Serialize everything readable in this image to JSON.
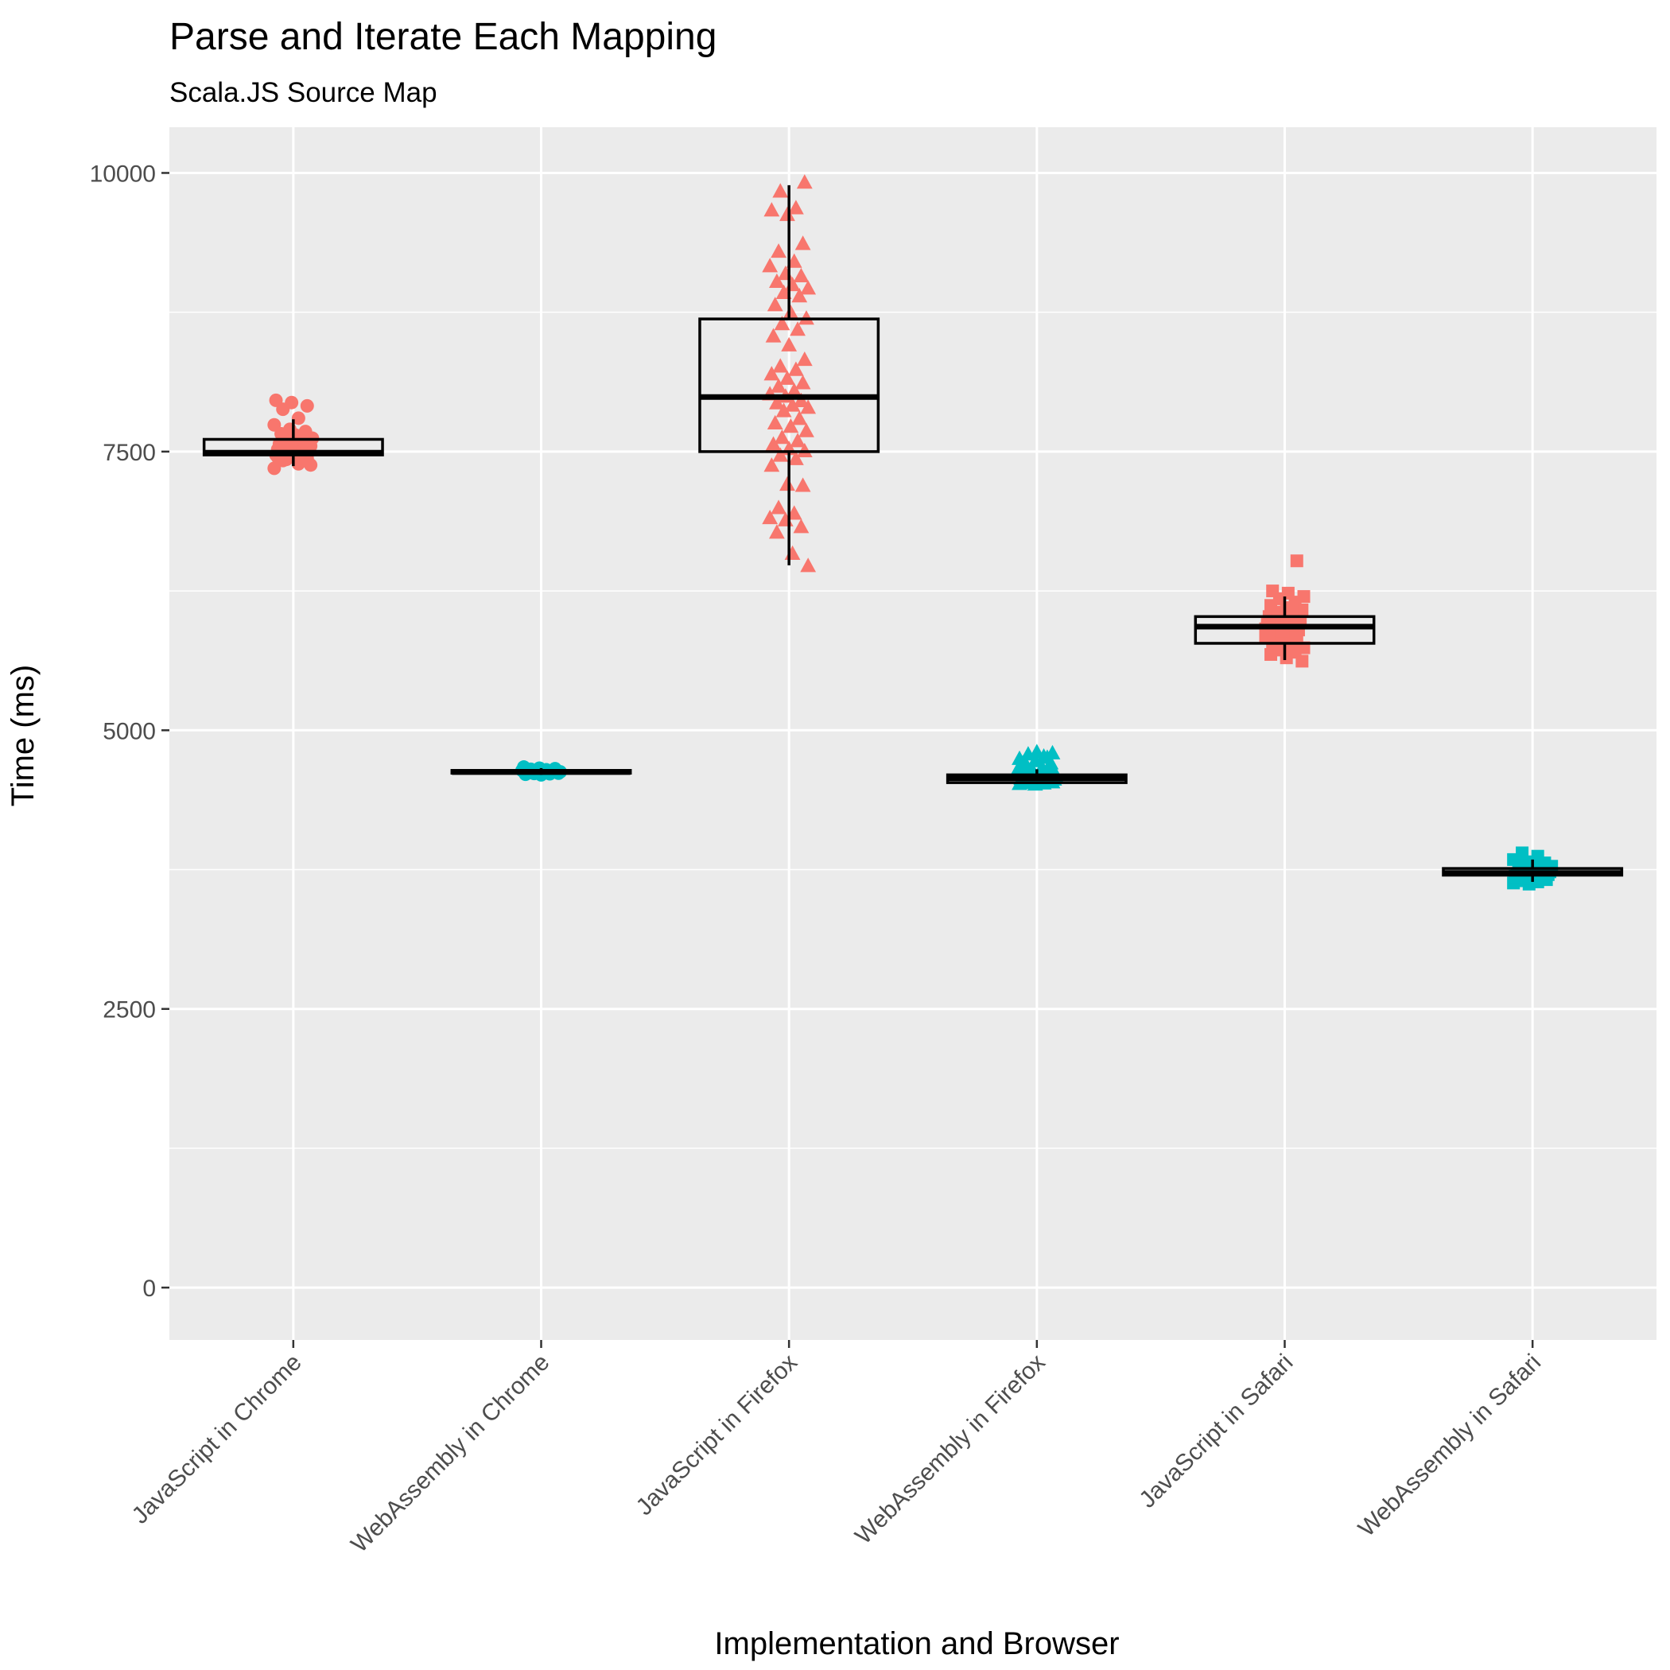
{
  "chart_data": {
    "type": "boxplot",
    "title": "Parse and Iterate Each Mapping",
    "subtitle": "Scala.JS Source Map",
    "xlabel": "Implementation and Browser",
    "ylabel": "Time (ms)",
    "ylim": [
      -470,
      10410
    ],
    "yticks": [
      0,
      2500,
      5000,
      7500,
      10000
    ],
    "grid": true,
    "legend": "none",
    "colors": {
      "JavaScript": "#F8766D",
      "WebAssembly": "#00BFC4",
      "panel": "#EBEBEB",
      "grid": "#FFFFFF"
    },
    "categories": [
      "JavaScript in Chrome",
      "WebAssembly in Chrome",
      "JavaScript in Firefox",
      "WebAssembly in Firefox",
      "JavaScript in Safari",
      "WebAssembly in Safari"
    ],
    "series": [
      {
        "category": "JavaScript in Chrome",
        "implementation": "JavaScript",
        "shape": "circle",
        "box": {
          "min": 7370,
          "q1": 7470,
          "median": 7490,
          "q3": 7610,
          "max": 7790
        },
        "points": [
          7350,
          7390,
          7420,
          7440,
          7460,
          7470,
          7480,
          7490,
          7500,
          7510,
          7520,
          7530,
          7540,
          7550,
          7560,
          7570,
          7580,
          7600,
          7620,
          7640,
          7660,
          7680,
          7700,
          7740,
          7800,
          7880,
          7910,
          7940,
          7960,
          7480,
          7520,
          7560,
          7600,
          7450,
          7500,
          7430,
          7380,
          7650,
          7540,
          7590
        ]
      },
      {
        "category": "WebAssembly in Chrome",
        "implementation": "WebAssembly",
        "shape": "circle",
        "box": {
          "min": 4600,
          "q1": 4615,
          "median": 4625,
          "q3": 4640,
          "max": 4660
        },
        "points": [
          4600,
          4605,
          4610,
          4612,
          4615,
          4618,
          4620,
          4622,
          4625,
          4627,
          4630,
          4632,
          4635,
          4638,
          4640,
          4645,
          4650,
          4655,
          4660,
          4670,
          4620,
          4628,
          4633,
          4615,
          4642
        ]
      },
      {
        "category": "JavaScript in Firefox",
        "implementation": "JavaScript",
        "shape": "triangle",
        "box": {
          "min": 6480,
          "q1": 7500,
          "median": 7990,
          "q3": 8690,
          "max": 9890
        },
        "points": [
          6470,
          6580,
          6770,
          6820,
          6880,
          6900,
          6940,
          6990,
          7190,
          7200,
          7370,
          7430,
          7460,
          7500,
          7520,
          7560,
          7590,
          7620,
          7680,
          7720,
          7750,
          7790,
          7860,
          7890,
          7910,
          7930,
          7950,
          7990,
          8010,
          8040,
          8080,
          8110,
          8150,
          8190,
          8230,
          8260,
          8320,
          8450,
          8530,
          8590,
          8640,
          8690,
          8740,
          8810,
          8890,
          8920,
          8960,
          8990,
          9020,
          9070,
          9090,
          9160,
          9200,
          9290,
          9360,
          9620,
          9660,
          9680,
          9830,
          9910
        ]
      },
      {
        "category": "WebAssembly in Firefox",
        "implementation": "WebAssembly",
        "shape": "triangle",
        "box": {
          "min": 4520,
          "q1": 4530,
          "median": 4570,
          "q3": 4600,
          "max": 4650
        },
        "points": [
          4510,
          4515,
          4520,
          4525,
          4530,
          4535,
          4540,
          4545,
          4550,
          4555,
          4560,
          4565,
          4570,
          4575,
          4580,
          4590,
          4600,
          4610,
          4620,
          4640,
          4660,
          4680,
          4700,
          4720,
          4740,
          4760,
          4780,
          4790,
          4800,
          4560,
          4580,
          4600,
          4620,
          4540,
          4700,
          4750
        ]
      },
      {
        "category": "JavaScript in Safari",
        "implementation": "JavaScript",
        "shape": "square",
        "box": {
          "min": 5630,
          "q1": 5780,
          "median": 5930,
          "q3": 6020,
          "max": 6200
        },
        "points": [
          5620,
          5650,
          5680,
          5700,
          5720,
          5740,
          5760,
          5780,
          5800,
          5820,
          5840,
          5860,
          5880,
          5900,
          5920,
          5930,
          5940,
          5960,
          5980,
          6000,
          6020,
          6040,
          6060,
          6080,
          6100,
          6120,
          6150,
          6180,
          6200,
          6230,
          6250,
          6520,
          5850,
          5910,
          5970,
          5750,
          6010,
          5890,
          5950,
          6070
        ]
      },
      {
        "category": "WebAssembly in Safari",
        "implementation": "WebAssembly",
        "shape": "square",
        "box": {
          "min": 3640,
          "q1": 3700,
          "median": 3720,
          "q3": 3760,
          "max": 3840
        },
        "points": [
          3620,
          3630,
          3640,
          3650,
          3660,
          3670,
          3680,
          3690,
          3700,
          3705,
          3710,
          3715,
          3720,
          3725,
          3730,
          3740,
          3750,
          3760,
          3770,
          3780,
          3790,
          3800,
          3810,
          3820,
          3840,
          3870,
          3900,
          3720,
          3735,
          3690,
          3745,
          3710
        ]
      }
    ]
  }
}
